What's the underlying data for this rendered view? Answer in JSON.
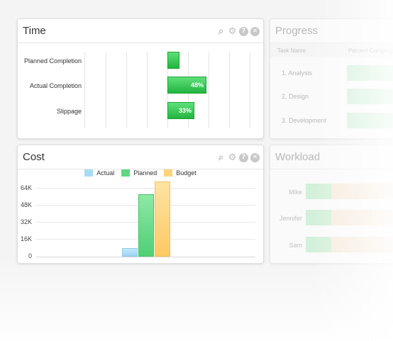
{
  "time": {
    "title": "Time",
    "rows": [
      {
        "label": "Planned Completion",
        "value": ""
      },
      {
        "label": "Actual Completion",
        "value": "48%"
      },
      {
        "label": "Slippage",
        "value": "33%"
      }
    ]
  },
  "cost": {
    "title": "Cost",
    "legend": [
      "Actual",
      "Planned",
      "Budget"
    ],
    "y_ticks": [
      "64K",
      "48K",
      "32K",
      "16K",
      "0"
    ]
  },
  "progress": {
    "title": "Progress",
    "columns": [
      "Task Name",
      "Percent Complete"
    ],
    "tasks": [
      "1. Analysis",
      "2. Design",
      "3. Development"
    ]
  },
  "workload": {
    "title": "Workload",
    "people": [
      "Mike",
      "Jennifer",
      "Sam"
    ]
  },
  "colors": {
    "actual": "#a8dcf4",
    "planned": "#5ed882",
    "budget": "#fdd37b",
    "green": "#2ec44b"
  },
  "chart_data": {
    "type": "bar",
    "categories": [
      ""
    ],
    "series": [
      {
        "name": "Actual",
        "values": [
          8000
        ]
      },
      {
        "name": "Planned",
        "values": [
          58000
        ]
      },
      {
        "name": "Budget",
        "values": [
          70000
        ]
      }
    ],
    "ylim": [
      0,
      64000
    ],
    "y_ticks": [
      0,
      16000,
      32000,
      48000,
      64000
    ],
    "grid": true,
    "legend": "top-center"
  }
}
